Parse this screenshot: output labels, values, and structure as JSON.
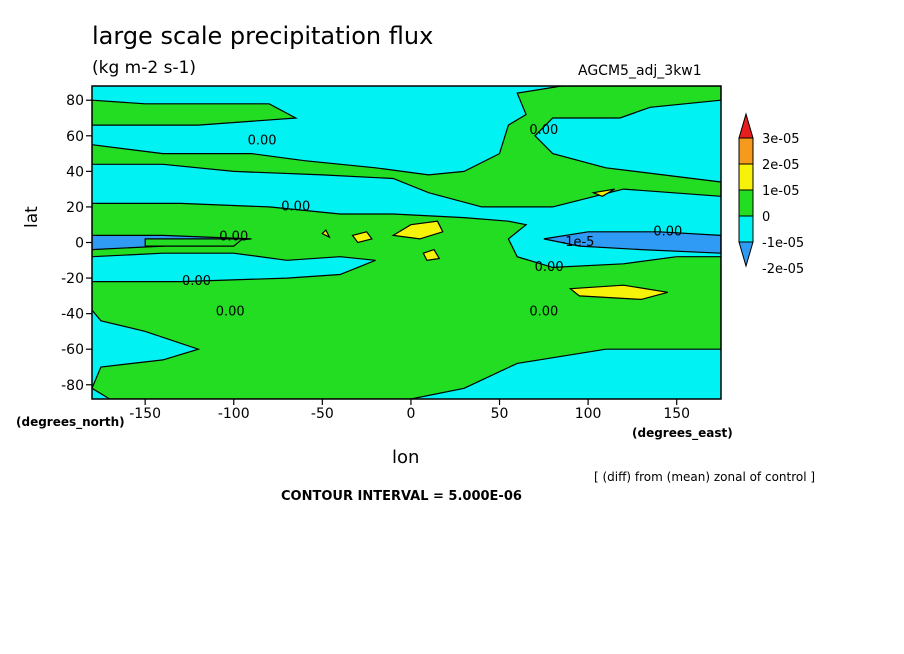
{
  "chart_data": {
    "type": "heatmap",
    "title": "large scale precipitation flux",
    "subtitle": "(kg m-2 s-1)",
    "run_label": "AGCM5_adj_3kw1",
    "xlabel": "lon",
    "ylabel": "lat",
    "x_units": "(degrees_east)",
    "y_units": "(degrees_north)",
    "xlim": [
      -180,
      175
    ],
    "ylim": [
      -88,
      88
    ],
    "x_ticks": [
      -150,
      -100,
      -50,
      0,
      50,
      100,
      150
    ],
    "y_ticks": [
      80,
      60,
      40,
      20,
      0,
      -20,
      -40,
      -60,
      -80
    ],
    "x_tick_labels": [
      "-150",
      "-100",
      "-50",
      "0",
      "50",
      "100",
      "150"
    ],
    "y_tick_labels": [
      "80",
      "60",
      "40",
      "20",
      "0",
      "-20",
      "-40",
      "-60",
      "-80"
    ],
    "note": "[ (diff) from (mean) zonal of control ]",
    "contour_interval": "CONTOUR INTERVAL = 5.000E-06",
    "colorbar": {
      "levels": [
        "3e-05",
        "2e-05",
        "1e-05",
        "0",
        "-1e-05",
        "-2e-05"
      ],
      "colors": [
        "#e81d1d",
        "#f59a1c",
        "#f7f20a",
        "#22dd22",
        "#00f2f2",
        "#2f9bf5"
      ]
    },
    "background_color": "#00f2f2",
    "regions": [
      {
        "level": "0 to 1e-05",
        "color": "#22dd22",
        "points": [
          [
            -180,
            80
          ],
          [
            -150,
            78
          ],
          [
            -80,
            78
          ],
          [
            -65,
            70
          ],
          [
            -120,
            66
          ],
          [
            -180,
            66
          ]
        ]
      },
      {
        "level": "0 to 1e-05",
        "color": "#22dd22",
        "points": [
          [
            -180,
            55
          ],
          [
            -140,
            50
          ],
          [
            -90,
            50
          ],
          [
            -60,
            46
          ],
          [
            -20,
            42
          ],
          [
            10,
            38
          ],
          [
            30,
            40
          ],
          [
            50,
            50
          ],
          [
            55,
            66
          ],
          [
            65,
            72
          ],
          [
            60,
            84
          ],
          [
            85,
            88
          ],
          [
            175,
            88
          ],
          [
            175,
            80
          ],
          [
            135,
            76
          ],
          [
            118,
            70
          ],
          [
            80,
            70
          ],
          [
            70,
            60
          ],
          [
            80,
            50
          ],
          [
            110,
            42
          ],
          [
            175,
            34
          ],
          [
            175,
            26
          ],
          [
            120,
            30
          ],
          [
            80,
            20
          ],
          [
            40,
            20
          ],
          [
            10,
            28
          ],
          [
            -10,
            36
          ],
          [
            -50,
            38
          ],
          [
            -100,
            40
          ],
          [
            -140,
            44
          ],
          [
            -180,
            44
          ]
        ]
      },
      {
        "level": "0 to 1e-05",
        "color": "#22dd22",
        "points": [
          [
            -180,
            22
          ],
          [
            -130,
            22
          ],
          [
            -80,
            20
          ],
          [
            -40,
            16
          ],
          [
            -10,
            16
          ],
          [
            30,
            14
          ],
          [
            55,
            12
          ],
          [
            65,
            10
          ],
          [
            55,
            2
          ],
          [
            60,
            -8
          ],
          [
            80,
            -14
          ],
          [
            120,
            -12
          ],
          [
            150,
            -8
          ],
          [
            175,
            -8
          ],
          [
            175,
            -60
          ],
          [
            110,
            -60
          ],
          [
            60,
            -68
          ],
          [
            30,
            -82
          ],
          [
            0,
            -88
          ],
          [
            -170,
            -88
          ],
          [
            -180,
            -82
          ],
          [
            -175,
            -70
          ],
          [
            -140,
            -66
          ],
          [
            -120,
            -60
          ],
          [
            -150,
            -50
          ],
          [
            -175,
            -44
          ],
          [
            -180,
            -38
          ],
          [
            -180,
            -22
          ],
          [
            -130,
            -22
          ],
          [
            -70,
            -20
          ],
          [
            -40,
            -18
          ],
          [
            -20,
            -10
          ],
          [
            -40,
            -8
          ],
          [
            -70,
            -10
          ],
          [
            -100,
            -6
          ],
          [
            -140,
            -6
          ],
          [
            -180,
            -8
          ]
        ]
      },
      {
        "level": "1e-05 to 2e-05",
        "color": "#f7f20a",
        "points": [
          [
            90,
            -26
          ],
          [
            120,
            -24
          ],
          [
            145,
            -28
          ],
          [
            130,
            -32
          ],
          [
            95,
            -30
          ]
        ]
      },
      {
        "level": "1e-05 to 2e-05",
        "color": "#f7f20a",
        "points": [
          [
            -10,
            4
          ],
          [
            0,
            10
          ],
          [
            15,
            12
          ],
          [
            18,
            6
          ],
          [
            5,
            2
          ]
        ]
      },
      {
        "level": "1e-05 to 2e-05",
        "color": "#f7f20a",
        "points": [
          [
            -33,
            4
          ],
          [
            -25,
            6
          ],
          [
            -22,
            2
          ],
          [
            -30,
            0
          ]
        ]
      },
      {
        "level": "1e-05 to 2e-05",
        "color": "#f7f20a",
        "points": [
          [
            -50,
            5
          ],
          [
            -48,
            7
          ],
          [
            -46,
            3
          ]
        ]
      },
      {
        "level": "1e-05 to 2e-05",
        "color": "#f7f20a",
        "points": [
          [
            7,
            -6
          ],
          [
            13,
            -4
          ],
          [
            16,
            -9
          ],
          [
            9,
            -10
          ]
        ]
      },
      {
        "level": "1e-05 to 2e-05",
        "color": "#f7f20a",
        "points": [
          [
            103,
            28
          ],
          [
            115,
            30
          ],
          [
            108,
            26
          ]
        ]
      },
      {
        "level": "-2e-05 to -1e-05",
        "color": "#2f9bf5",
        "points": [
          [
            -180,
            4
          ],
          [
            -140,
            4
          ],
          [
            -90,
            2
          ],
          [
            -140,
            -2
          ],
          [
            -180,
            -4
          ]
        ]
      },
      {
        "level": "-2e-05 to -1e-05",
        "color": "#2f9bf5",
        "points": [
          [
            75,
            2
          ],
          [
            100,
            6
          ],
          [
            140,
            6
          ],
          [
            175,
            4
          ],
          [
            175,
            -6
          ],
          [
            130,
            -4
          ],
          [
            95,
            -2
          ]
        ]
      },
      {
        "level": "0 to 1e-05",
        "color": "#22dd22",
        "points": [
          [
            -150,
            -2
          ],
          [
            -100,
            -2
          ],
          [
            -95,
            2
          ],
          [
            -150,
            2
          ]
        ]
      }
    ],
    "contour_labels": [
      {
        "text": "0.00",
        "lon": -84,
        "lat": 57
      },
      {
        "text": "0.00",
        "lon": -65,
        "lat": 20
      },
      {
        "text": "0.00",
        "lon": -100,
        "lat": 3
      },
      {
        "text": "0.00",
        "lon": -121,
        "lat": -22
      },
      {
        "text": "0.00",
        "lon": -102,
        "lat": -39
      },
      {
        "text": "0.00",
        "lon": 75,
        "lat": 63
      },
      {
        "text": "0.00",
        "lon": 145,
        "lat": 6
      },
      {
        "text": "0.00",
        "lon": 78,
        "lat": -14
      },
      {
        "text": "0.00",
        "lon": 75,
        "lat": -39
      },
      {
        "text": "-1e-5",
        "lon": 94,
        "lat": 0
      }
    ]
  }
}
